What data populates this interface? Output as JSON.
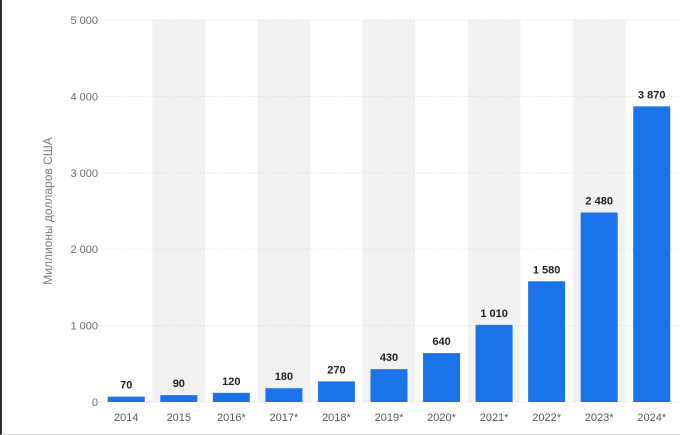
{
  "chart_data": {
    "type": "bar",
    "title": "",
    "xlabel": "",
    "ylabel": "Миллионы долларов США",
    "categories": [
      "2014",
      "2015",
      "2016*",
      "2017*",
      "2018*",
      "2019*",
      "2020*",
      "2021*",
      "2022*",
      "2023*",
      "2024*"
    ],
    "values": [
      70,
      90,
      120,
      180,
      270,
      430,
      640,
      1010,
      1580,
      2480,
      3870
    ],
    "value_labels": [
      "70",
      "90",
      "120",
      "180",
      "270",
      "430",
      "640",
      "1 010",
      "1 580",
      "2 480",
      "3 870"
    ],
    "ylim": [
      0,
      5000
    ],
    "yticks": [
      0,
      1000,
      2000,
      3000,
      4000,
      5000
    ],
    "ytick_labels": [
      "0",
      "1 000",
      "2 000",
      "3 000",
      "4 000",
      "5 000"
    ],
    "grid": true,
    "bar_color": "#1a73e8",
    "band_color": "#f2f2f2"
  }
}
